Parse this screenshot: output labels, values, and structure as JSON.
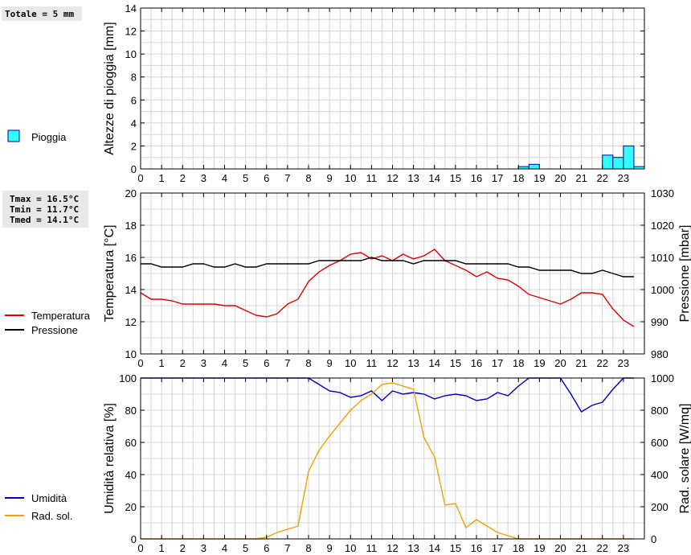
{
  "info": {
    "rain_total": "Totale = 5 mm",
    "tmax": "Tmax = 16.5°C",
    "tmin": "Tmin = 11.7°C",
    "tmed": "Tmed = 14.1°C"
  },
  "colors": {
    "rain": "#33ffff",
    "temperature": "#dd0000",
    "pressure": "#000000",
    "humidity": "#0000bb",
    "radiation": "#f0a000",
    "grid": "#d4d4d4"
  },
  "chart_data": [
    {
      "type": "bar",
      "ylabel": "Altezze di pioggia [mm]",
      "ylim": [
        0,
        14
      ],
      "y_ticks": [
        "0",
        "2",
        "4",
        "6",
        "8",
        "10",
        "12",
        "14"
      ],
      "x_ticks": [
        "0",
        "1",
        "2",
        "3",
        "4",
        "5",
        "6",
        "7",
        "8",
        "9",
        "10",
        "11",
        "12",
        "13",
        "14",
        "15",
        "16",
        "17",
        "18",
        "19",
        "20",
        "21",
        "22",
        "23"
      ],
      "xlim": [
        0,
        24
      ],
      "grid": true,
      "legend": [
        {
          "name": "Pioggia"
        }
      ],
      "bars": [
        {
          "x": 18.0,
          "value": 0.2
        },
        {
          "x": 18.5,
          "value": 0.4
        },
        {
          "x": 22.0,
          "value": 1.2
        },
        {
          "x": 22.5,
          "value": 1.0
        },
        {
          "x": 23.0,
          "value": 2.0
        },
        {
          "x": 23.5,
          "value": 0.2
        }
      ],
      "bar_width": 0.5
    },
    {
      "type": "line",
      "ylabel": "Temperatura [°C]",
      "y2label": "Pressione [mbar]",
      "ylim": [
        10,
        20
      ],
      "y2lim": [
        980,
        1030
      ],
      "y_ticks": [
        "10",
        "12",
        "14",
        "16",
        "18",
        "20"
      ],
      "y2_ticks": [
        "980",
        "990",
        "1000",
        "1010",
        "1020",
        "1030"
      ],
      "x_ticks": [
        "0",
        "1",
        "2",
        "3",
        "4",
        "5",
        "6",
        "7",
        "8",
        "9",
        "10",
        "11",
        "12",
        "13",
        "14",
        "15",
        "16",
        "17",
        "18",
        "19",
        "20",
        "21",
        "22",
        "23"
      ],
      "xlim": [
        0,
        24
      ],
      "grid": true,
      "series": [
        {
          "name": "Temperatura",
          "axis": "left",
          "x": [
            0,
            0.5,
            1,
            1.5,
            2,
            2.5,
            3,
            3.5,
            4,
            4.5,
            5,
            5.5,
            6,
            6.5,
            7,
            7.5,
            8,
            8.5,
            9,
            9.5,
            10,
            10.5,
            11,
            11.5,
            12,
            12.5,
            13,
            13.5,
            14,
            14.5,
            15,
            15.5,
            16,
            16.5,
            17,
            17.5,
            18,
            18.5,
            19,
            19.5,
            20,
            20.5,
            21,
            21.5,
            22,
            22.5,
            23,
            23.5
          ],
          "values": [
            13.8,
            13.4,
            13.4,
            13.3,
            13.1,
            13.1,
            13.1,
            13.1,
            13.0,
            13.0,
            12.7,
            12.4,
            12.3,
            12.5,
            13.1,
            13.4,
            14.5,
            15.1,
            15.5,
            15.8,
            16.2,
            16.3,
            15.9,
            16.1,
            15.8,
            16.2,
            15.9,
            16.1,
            16.5,
            15.8,
            15.5,
            15.2,
            14.8,
            15.1,
            14.7,
            14.6,
            14.2,
            13.7,
            13.5,
            13.3,
            13.1,
            13.4,
            13.8,
            13.8,
            13.7,
            12.8,
            12.1,
            11.7
          ]
        },
        {
          "name": "Pressione",
          "axis": "right",
          "x": [
            0,
            0.5,
            1,
            1.5,
            2,
            2.5,
            3,
            3.5,
            4,
            4.5,
            5,
            5.5,
            6,
            6.5,
            7,
            7.5,
            8,
            8.5,
            9,
            9.5,
            10,
            10.5,
            11,
            11.5,
            12,
            12.5,
            13,
            13.5,
            14,
            14.5,
            15,
            15.5,
            16,
            16.5,
            17,
            17.5,
            18,
            18.5,
            19,
            19.5,
            20,
            20.5,
            21,
            21.5,
            22,
            22.5,
            23,
            23.5
          ],
          "values": [
            1008,
            1008,
            1007,
            1007,
            1007,
            1008,
            1008,
            1007,
            1007,
            1008,
            1007,
            1007,
            1008,
            1008,
            1008,
            1008,
            1008,
            1009,
            1009,
            1009,
            1009,
            1009,
            1010,
            1009,
            1009,
            1009,
            1008,
            1009,
            1009,
            1009,
            1009,
            1008,
            1008,
            1008,
            1008,
            1008,
            1007,
            1007,
            1006,
            1006,
            1006,
            1006,
            1005,
            1005,
            1006,
            1005,
            1004,
            1004
          ]
        }
      ]
    },
    {
      "type": "line",
      "ylabel": "Umidità relativa [%]",
      "y2label": "Rad. solare [W/mq]",
      "ylim": [
        0,
        100
      ],
      "y2lim": [
        0,
        1000
      ],
      "y_ticks": [
        "0",
        "20",
        "40",
        "60",
        "80",
        "100"
      ],
      "y2_ticks": [
        "0",
        "200",
        "400",
        "600",
        "800",
        "1000"
      ],
      "x_ticks": [
        "0",
        "1",
        "2",
        "3",
        "4",
        "5",
        "6",
        "7",
        "8",
        "9",
        "10",
        "11",
        "12",
        "13",
        "14",
        "15",
        "16",
        "17",
        "18",
        "19",
        "20",
        "21",
        "22",
        "23"
      ],
      "xlim": [
        0,
        24
      ],
      "grid": true,
      "series": [
        {
          "name": "Umidità",
          "axis": "left",
          "x": [
            0,
            0.5,
            1,
            1.5,
            2,
            2.5,
            3,
            3.5,
            4,
            4.5,
            5,
            5.5,
            6,
            6.5,
            7,
            7.5,
            8,
            8.5,
            9,
            9.5,
            10,
            10.5,
            11,
            11.5,
            12,
            12.5,
            13,
            13.5,
            14,
            14.5,
            15,
            15.5,
            16,
            16.5,
            17,
            17.5,
            18,
            18.5,
            19,
            19.5,
            20,
            20.5,
            21,
            21.5,
            22,
            22.5,
            23,
            23.5
          ],
          "values": [
            100,
            100,
            100,
            100,
            100,
            100,
            100,
            100,
            100,
            100,
            100,
            100,
            100,
            100,
            100,
            100,
            100,
            96,
            92,
            91,
            88,
            89,
            92,
            86,
            92,
            90,
            91,
            90,
            87,
            89,
            90,
            89,
            86,
            87,
            91,
            89,
            95,
            100,
            100,
            100,
            100,
            90,
            79,
            83,
            85,
            93,
            100,
            100
          ]
        },
        {
          "name": "Rad. sol.",
          "axis": "right",
          "x": [
            0,
            0.5,
            1,
            1.5,
            2,
            2.5,
            3,
            3.5,
            4,
            4.5,
            5,
            5.5,
            6,
            6.5,
            7,
            7.5,
            8,
            8.5,
            9,
            9.5,
            10,
            10.5,
            11,
            11.5,
            12,
            12.5,
            13,
            13.5,
            14,
            14.5,
            15,
            15.5,
            16,
            16.5,
            17,
            17.5,
            18,
            18.5,
            19,
            19.5,
            20,
            20.5,
            21,
            21.5,
            22,
            22.5,
            23,
            23.5
          ],
          "values": [
            0,
            0,
            0,
            0,
            0,
            0,
            0,
            0,
            0,
            0,
            0,
            0,
            10,
            40,
            60,
            80,
            420,
            550,
            640,
            720,
            800,
            860,
            900,
            960,
            970,
            950,
            930,
            630,
            510,
            210,
            220,
            70,
            120,
            80,
            40,
            20,
            0,
            0,
            0,
            0,
            0,
            0,
            0,
            0,
            0,
            0,
            0,
            0
          ]
        }
      ]
    }
  ]
}
